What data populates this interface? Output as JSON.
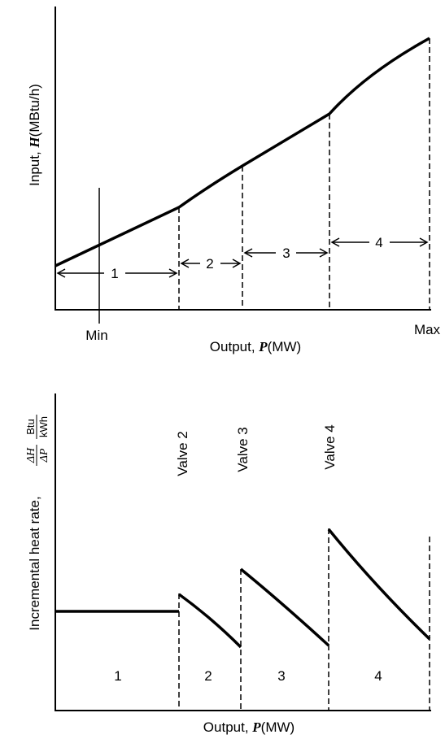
{
  "top_chart": {
    "ylabel_prefix": "Input, ",
    "ylabel_var": "H",
    "ylabel_unit": "(MBtu/h)",
    "xlabel_prefix": "Output, ",
    "xlabel_var": "P",
    "xlabel_unit": "(MW)",
    "min_label": "Min",
    "max_label": "Max",
    "range_labels": [
      "1",
      "2",
      "3",
      "4"
    ]
  },
  "bottom_chart": {
    "ylabel_prefix": "Incremental heat rate, ",
    "ylabel_frac_num": "ΔH",
    "ylabel_frac_den": "ΔP",
    "ylabel_unit_num": "Btu",
    "ylabel_unit_den": "kWh",
    "xlabel_prefix": "Output, ",
    "xlabel_var": "P",
    "xlabel_unit": "(MW)",
    "valve_labels": [
      "Valve 2",
      "Valve 3",
      "Valve 4"
    ],
    "segment_labels": [
      "1",
      "2",
      "3",
      "4"
    ]
  }
}
